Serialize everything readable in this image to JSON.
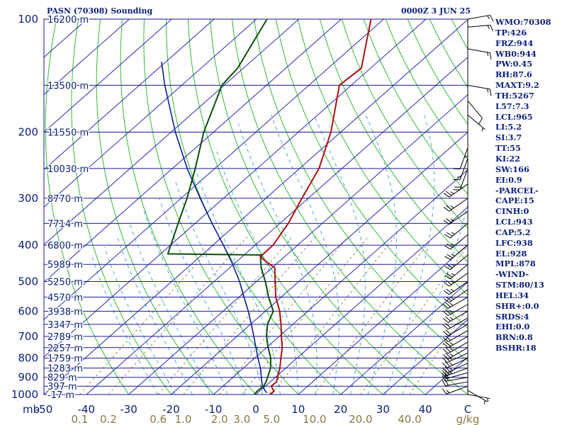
{
  "header": {
    "station": "PASN (70308) Sounding",
    "valid_time": "0000Z 3 JUN 25"
  },
  "indices": [
    "WMO:70308",
    "TP:426",
    "FRZ:944",
    "WB0:944",
    "PW:0.45",
    "RH:87.6",
    "MAXT:9.2",
    "TH:5267",
    "L57:7.3",
    "LCL:965",
    "LI:5.2",
    "SI:3.7",
    "TT:55",
    "KI:22",
    "SW:166",
    "EI:0.9",
    "-PARCEL-",
    "CAPE:15",
    "CINH:0",
    "LCL:943",
    "CAP:5.2",
    "LFC:938",
    "EL:928",
    "MPL:878",
    "-WIND-",
    "STM:80/13",
    "HEL:34",
    "SHR+:0.0",
    "SRDS:4",
    "EHI:0.0",
    "BRN:0.8",
    "BSHR:18"
  ],
  "colors": {
    "isobar": "#1a1a9a",
    "isotherm": "#2a2ab8",
    "dry_adiabat": "#33bb33",
    "moist_adiabat": "#4aa8e0",
    "mixing_ratio": "#8a7a44",
    "temperature": "#b01010",
    "dewpoint": "#0a4f0a",
    "parcel": "#0a1e9a",
    "label": "#0a1e7a",
    "mixing_ratio_label": "#8a7a44"
  },
  "chart_data": {
    "type": "skew-t log-p",
    "pressure_axis": {
      "unit_label": "mb",
      "range": [
        1000,
        100
      ],
      "log_scale": true,
      "labels": [
        100,
        200,
        300,
        400,
        500,
        600,
        700,
        800,
        900,
        1000
      ]
    },
    "height_labels": [
      {
        "p": 100,
        "text": "16200 m"
      },
      {
        "p": 150,
        "text": "13500 m"
      },
      {
        "p": 200,
        "text": "11550 m"
      },
      {
        "p": 250,
        "text": "10030 m"
      },
      {
        "p": 300,
        "text": "8770 m"
      },
      {
        "p": 350,
        "text": "7714 m"
      },
      {
        "p": 400,
        "text": "6800 m"
      },
      {
        "p": 450,
        "text": "5989 m"
      },
      {
        "p": 500,
        "text": "5250 m"
      },
      {
        "p": 550,
        "text": "4570 m"
      },
      {
        "p": 600,
        "text": "3938 m"
      },
      {
        "p": 650,
        "text": "3347 m"
      },
      {
        "p": 700,
        "text": "2789 m"
      },
      {
        "p": 750,
        "text": "2257 m"
      },
      {
        "p": 800,
        "text": "1759 m"
      },
      {
        "p": 850,
        "text": "1283 m"
      },
      {
        "p": 900,
        "text": "829 m"
      },
      {
        "p": 950,
        "text": "397 m"
      },
      {
        "p": 1000,
        "text": "-17 m"
      }
    ],
    "temperature_axis": {
      "unit_label": "C",
      "range": [
        -50,
        50
      ],
      "ticks": [
        -50,
        -40,
        -30,
        -20,
        -10,
        0,
        10,
        20,
        30,
        40
      ],
      "tick_labels": [
        "-50",
        "-40",
        "-30",
        "-20",
        "-10",
        "0",
        "10",
        "20",
        "30",
        "40"
      ]
    },
    "mixing_ratio_axis": {
      "unit_label": "g/kg",
      "values": [
        0.1,
        0.2,
        0.6,
        1.0,
        2.0,
        3.0,
        5.0,
        10.0,
        20.0,
        40.0
      ],
      "labels": [
        "0.1",
        "0.2",
        "0.6",
        "1.0",
        "2.0",
        "3.0",
        "5.0",
        "10.0",
        "20.0",
        "40.0"
      ]
    },
    "temperature_profile": [
      {
        "p": 1007,
        "t": 3.2
      },
      {
        "p": 980,
        "t": 3.4
      },
      {
        "p": 950,
        "t": 1.4
      },
      {
        "p": 925,
        "t": 1.5
      },
      {
        "p": 900,
        "t": 0.5
      },
      {
        "p": 850,
        "t": -1.4
      },
      {
        "p": 800,
        "t": -3.8
      },
      {
        "p": 750,
        "t": -6.3
      },
      {
        "p": 700,
        "t": -9.5
      },
      {
        "p": 650,
        "t": -12.8
      },
      {
        "p": 600,
        "t": -16.6
      },
      {
        "p": 550,
        "t": -21.3
      },
      {
        "p": 500,
        "t": -25.6
      },
      {
        "p": 460,
        "t": -29.3
      },
      {
        "p": 430,
        "t": -35.7
      },
      {
        "p": 400,
        "t": -35.8
      },
      {
        "p": 350,
        "t": -38.0
      },
      {
        "p": 300,
        "t": -41.5
      },
      {
        "p": 250,
        "t": -45.4
      },
      {
        "p": 200,
        "t": -52.3
      },
      {
        "p": 150,
        "t": -62.8
      },
      {
        "p": 135,
        "t": -62.2
      },
      {
        "p": 100,
        "t": -73.0
      }
    ],
    "dewpoint_profile": [
      {
        "p": 1007,
        "t": -0.3
      },
      {
        "p": 980,
        "t": -0.6
      },
      {
        "p": 950,
        "t": -0.4
      },
      {
        "p": 925,
        "t": -1.0
      },
      {
        "p": 900,
        "t": -1.8
      },
      {
        "p": 850,
        "t": -3.6
      },
      {
        "p": 800,
        "t": -6.2
      },
      {
        "p": 750,
        "t": -9.6
      },
      {
        "p": 700,
        "t": -13.0
      },
      {
        "p": 650,
        "t": -16.0
      },
      {
        "p": 600,
        "t": -18.1
      },
      {
        "p": 550,
        "t": -23.0
      },
      {
        "p": 500,
        "t": -27.9
      },
      {
        "p": 460,
        "t": -32.5
      },
      {
        "p": 435,
        "t": -35.1
      },
      {
        "p": 425,
        "t": -35.8
      },
      {
        "p": 422,
        "t": -58.3
      },
      {
        "p": 350,
        "t": -64.0
      },
      {
        "p": 300,
        "t": -68.6
      },
      {
        "p": 250,
        "t": -74.6
      },
      {
        "p": 200,
        "t": -82.3
      },
      {
        "p": 150,
        "t": -90.5
      },
      {
        "p": 135,
        "t": -91.4
      },
      {
        "p": 100,
        "t": -97.5
      }
    ],
    "parcel_path": [
      {
        "p": 990,
        "t": 2.1
      },
      {
        "p": 950,
        "t": -0.7
      },
      {
        "p": 900,
        "t": -3.3
      },
      {
        "p": 850,
        "t": -6.0
      },
      {
        "p": 800,
        "t": -9.2
      },
      {
        "p": 750,
        "t": -12.5
      },
      {
        "p": 700,
        "t": -16.0
      },
      {
        "p": 650,
        "t": -19.8
      },
      {
        "p": 600,
        "t": -24.0
      },
      {
        "p": 550,
        "t": -28.8
      },
      {
        "p": 500,
        "t": -34.0
      },
      {
        "p": 450,
        "t": -40.2
      },
      {
        "p": 400,
        "t": -47.5
      },
      {
        "p": 350,
        "t": -56.0
      },
      {
        "p": 300,
        "t": -65.5
      },
      {
        "p": 250,
        "t": -76.5
      },
      {
        "p": 200,
        "t": -89.0
      },
      {
        "p": 150,
        "t": -104.0
      },
      {
        "p": 130,
        "t": -111.0
      }
    ],
    "wind_profile": [
      {
        "p": 1000,
        "dir": 100,
        "kt": 5
      },
      {
        "p": 975,
        "dir": 120,
        "kt": 5
      },
      {
        "p": 950,
        "dir": 250,
        "kt": 15
      },
      {
        "p": 925,
        "dir": 260,
        "kt": 20
      },
      {
        "p": 900,
        "dir": 260,
        "kt": 20
      },
      {
        "p": 875,
        "dir": 255,
        "kt": 20
      },
      {
        "p": 850,
        "dir": 250,
        "kt": 25
      },
      {
        "p": 825,
        "dir": 245,
        "kt": 25
      },
      {
        "p": 800,
        "dir": 245,
        "kt": 25
      },
      {
        "p": 775,
        "dir": 245,
        "kt": 25
      },
      {
        "p": 750,
        "dir": 240,
        "kt": 25
      },
      {
        "p": 725,
        "dir": 240,
        "kt": 25
      },
      {
        "p": 700,
        "dir": 240,
        "kt": 25
      },
      {
        "p": 675,
        "dir": 240,
        "kt": 20
      },
      {
        "p": 650,
        "dir": 240,
        "kt": 20
      },
      {
        "p": 625,
        "dir": 240,
        "kt": 20
      },
      {
        "p": 600,
        "dir": 240,
        "kt": 25
      },
      {
        "p": 575,
        "dir": 240,
        "kt": 25
      },
      {
        "p": 550,
        "dir": 240,
        "kt": 25
      },
      {
        "p": 525,
        "dir": 235,
        "kt": 25
      },
      {
        "p": 500,
        "dir": 235,
        "kt": 25
      },
      {
        "p": 475,
        "dir": 235,
        "kt": 25
      },
      {
        "p": 450,
        "dir": 230,
        "kt": 25
      },
      {
        "p": 425,
        "dir": 230,
        "kt": 25
      },
      {
        "p": 400,
        "dir": 230,
        "kt": 25
      },
      {
        "p": 375,
        "dir": 230,
        "kt": 25
      },
      {
        "p": 350,
        "dir": 230,
        "kt": 25
      },
      {
        "p": 325,
        "dir": 235,
        "kt": 25
      },
      {
        "p": 300,
        "dir": 235,
        "kt": 25
      },
      {
        "p": 275,
        "dir": 235,
        "kt": 25
      },
      {
        "p": 250,
        "dir": 200,
        "kt": 20
      },
      {
        "p": 235,
        "dir": 200,
        "kt": 15
      },
      {
        "p": 220,
        "dir": 200,
        "kt": 10
      },
      {
        "p": 205,
        "dir": 180,
        "kt": 5
      },
      {
        "p": 180,
        "dir": 130,
        "kt": 5
      },
      {
        "p": 165,
        "dir": 140,
        "kt": 10
      },
      {
        "p": 150,
        "dir": 100,
        "kt": 15
      },
      {
        "p": 120,
        "dir": 100,
        "kt": 15
      },
      {
        "p": 105,
        "dir": 85,
        "kt": 15
      },
      {
        "p": 100,
        "dir": 80,
        "kt": 15
      }
    ]
  }
}
